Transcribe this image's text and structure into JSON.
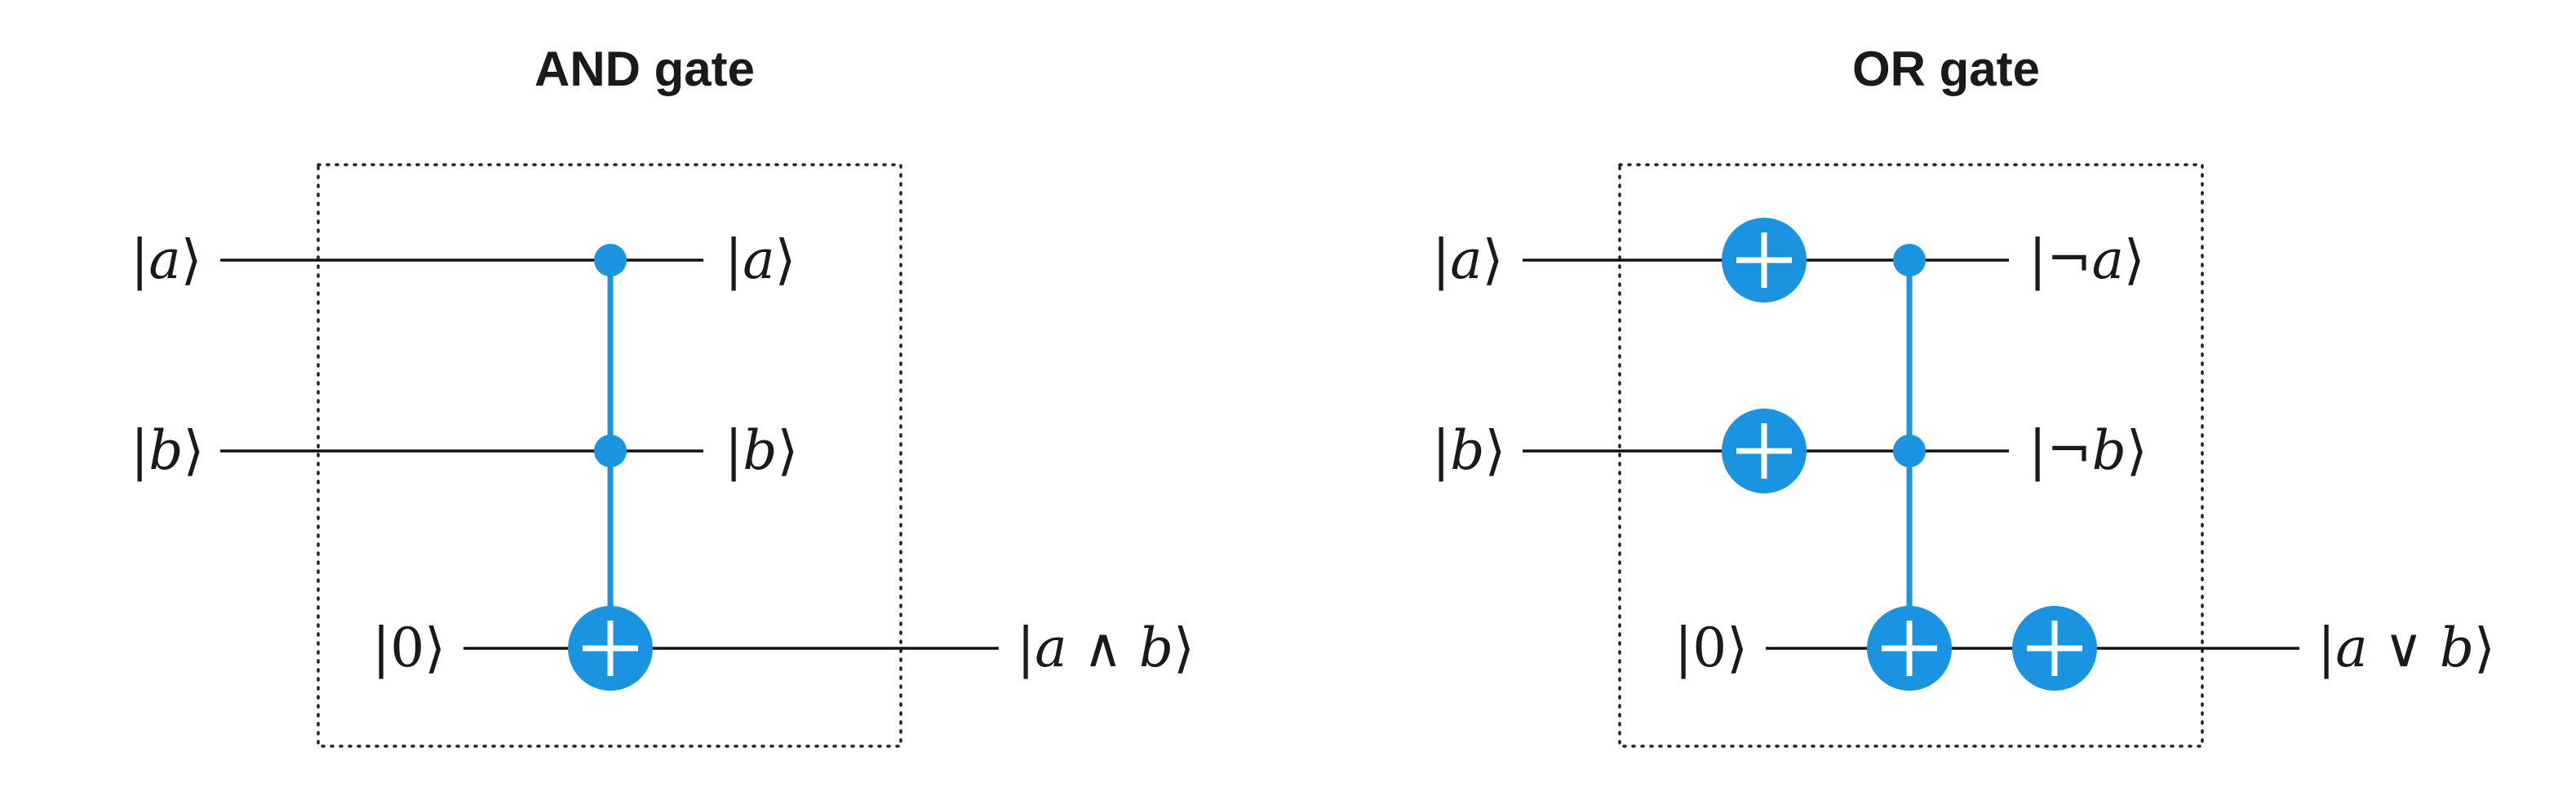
{
  "and_gate": {
    "title": "AND gate",
    "inputs": {
      "a": "a",
      "b": "b",
      "zero": "0"
    },
    "outputs": {
      "a": "a",
      "b": "b",
      "result_left": "a",
      "result_op": "∧",
      "result_right": "b"
    }
  },
  "or_gate": {
    "title": "OR gate",
    "inputs": {
      "a": "a",
      "b": "b",
      "zero": "0"
    },
    "outputs": {
      "not_a_sym": "¬",
      "not_a": "a",
      "not_b_sym": "¬",
      "not_b": "b",
      "result_left": "a",
      "result_op": "∨",
      "result_right": "b"
    }
  },
  "colors": {
    "gate": "#1a93e0",
    "wire": "#111111"
  },
  "icons": {
    "control": "control-dot-icon",
    "target": "xor-target-icon"
  }
}
